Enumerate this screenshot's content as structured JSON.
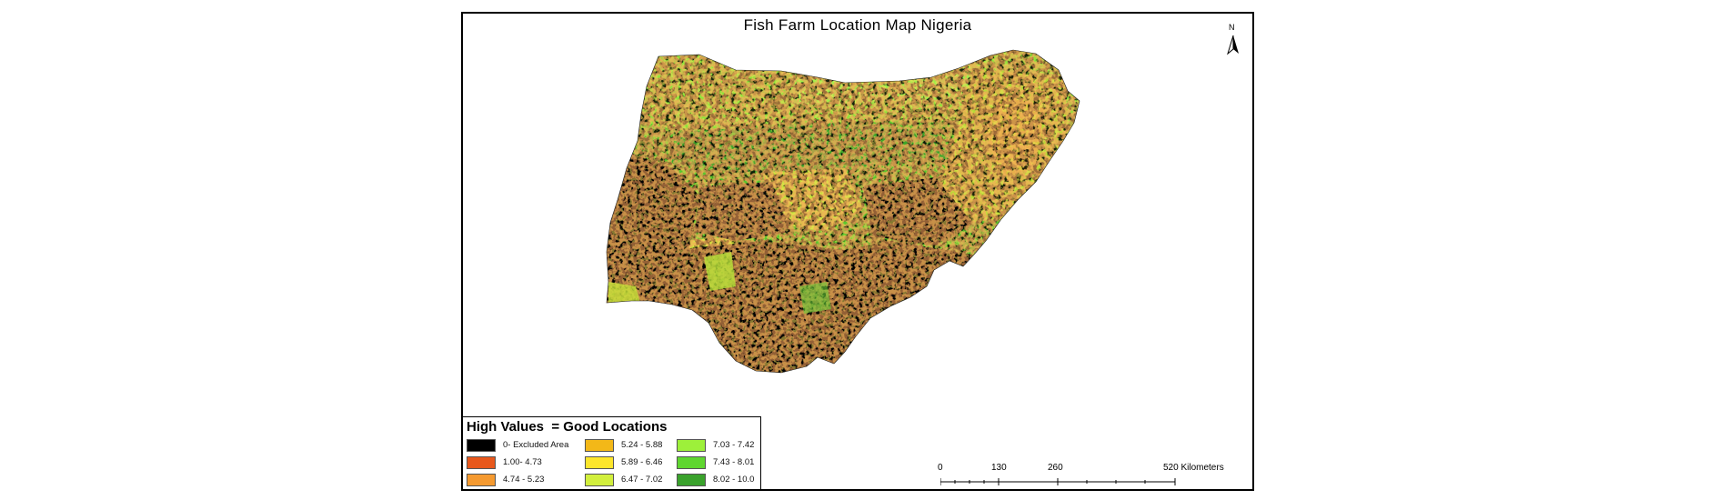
{
  "map": {
    "title": "Fish Farm Location Map Nigeria",
    "north_label": "N",
    "legend": {
      "title": "High Values  = Good Locations",
      "items": [
        {
          "label": "0- Excluded Area",
          "color": "#000000"
        },
        {
          "label": "1.00- 4.73",
          "color": "#e8581c"
        },
        {
          "label": "4.74 - 5.23",
          "color": "#f59a30"
        },
        {
          "label": "5.24 - 5.88",
          "color": "#f3b818"
        },
        {
          "label": "5.89 - 6.46",
          "color": "#fde62b"
        },
        {
          "label": "6.47 - 7.02",
          "color": "#d2ef3c"
        },
        {
          "label": "7.03 - 7.42",
          "color": "#9df03a"
        },
        {
          "label": "7.43 - 8.01",
          "color": "#5fd62f"
        },
        {
          "label": "8.02 - 10.0",
          "color": "#3aa22c"
        }
      ]
    },
    "scale_bar": {
      "ticks": [
        "0",
        "130",
        "260",
        "520 Kilometers"
      ]
    }
  }
}
